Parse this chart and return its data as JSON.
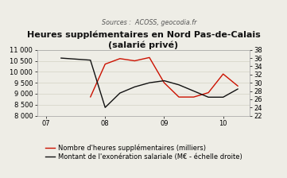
{
  "title": "Heures supplémentaires en Nord Pas-de-Calais\n(salarié privé)",
  "subtitle": "Sources :  ACOSS, geocodia.fr",
  "red_x": [
    7.75,
    8.0,
    8.25,
    8.5,
    8.75,
    9.0,
    9.25,
    9.5,
    9.75,
    10.0,
    10.25
  ],
  "red_y": [
    8850,
    10350,
    10600,
    10500,
    10650,
    9500,
    8850,
    8850,
    9050,
    9900,
    9350
  ],
  "black_x": [
    7.25,
    7.75,
    8.0,
    8.25,
    8.5,
    8.75,
    9.0,
    9.25,
    9.75,
    10.0,
    10.25
  ],
  "black_y_right": [
    36,
    35.5,
    24,
    27.5,
    29,
    30,
    30.5,
    29.5,
    26.5,
    26.5,
    28.5
  ],
  "red_color": "#cc1100",
  "black_color": "#111111",
  "bg_color": "#eeede6",
  "left_ylim": [
    8000,
    11000
  ],
  "right_ylim": [
    22,
    38
  ],
  "left_yticks": [
    8000,
    8500,
    9000,
    9500,
    10000,
    10500,
    11000
  ],
  "right_yticks": [
    22,
    24,
    26,
    28,
    30,
    32,
    34,
    36,
    38
  ],
  "xticks": [
    7,
    8,
    9,
    10
  ],
  "xtick_labels": [
    "07",
    "08",
    "09",
    "10"
  ],
  "legend1": "Nombre d'heures supplémentaires (milliers)",
  "legend2": "Montant de l'exonération salariale (M€ - échelle droite)",
  "title_fontsize": 8,
  "subtitle_fontsize": 5.8,
  "legend_fontsize": 6.0,
  "tick_fontsize": 6.0
}
